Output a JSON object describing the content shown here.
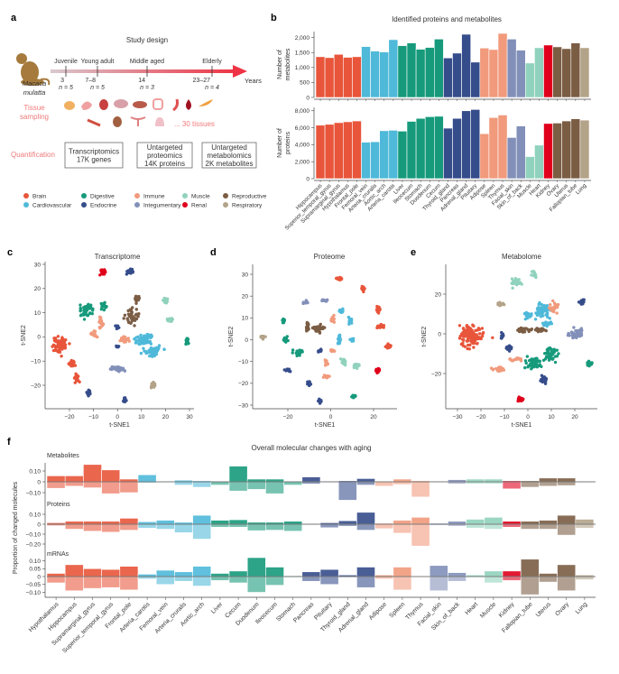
{
  "groups": [
    {
      "name": "Brain",
      "color": "#e8553a"
    },
    {
      "name": "Cardiovascular",
      "color": "#4fb9d9"
    },
    {
      "name": "Digestive",
      "color": "#169a7b"
    },
    {
      "name": "Endocrine",
      "color": "#364d8b"
    },
    {
      "name": "Immune",
      "color": "#f19a7c"
    },
    {
      "name": "Integumentary",
      "color": "#8290b9"
    },
    {
      "name": "Muscle",
      "color": "#90d2bd"
    },
    {
      "name": "Renal",
      "color": "#e0001b"
    },
    {
      "name": "Reproductive",
      "color": "#7b5d44"
    },
    {
      "name": "Respiratory",
      "color": "#b3a389"
    }
  ],
  "legend_order": [
    0,
    1,
    2,
    3,
    4,
    5,
    6,
    7,
    8,
    9
  ],
  "panel_a": {
    "label": "a",
    "title": "Study design",
    "species": [
      "Macaca",
      "mulatta"
    ],
    "stages": [
      {
        "name": "Juvenile",
        "age": "3",
        "n": "n = 5"
      },
      {
        "name": "Young adult",
        "age": "7–8",
        "n": "n = 5"
      },
      {
        "name": "Middle aged",
        "age": "14",
        "n": "n = 3"
      },
      {
        "name": "Elderly",
        "age": "23–27",
        "n": "n = 4"
      }
    ],
    "axis_label": "Years",
    "tissue_sampling": [
      "Tissue",
      "sampling"
    ],
    "tissues_note": "... 30 tissues",
    "quantification": "Quantification",
    "boxes": [
      [
        "Transcriptomics",
        "17K genes"
      ],
      [
        "Untargeted",
        "proteomics",
        "14K proteins"
      ],
      [
        "Untargeted",
        "metabolomics",
        "2K metabolites"
      ]
    ]
  },
  "chart_data": [
    {
      "panel": "b",
      "type": "bar",
      "title": "Identified proteins and metabolites",
      "categories": [
        "Hippocampus",
        "Superior_temporal_gyrus",
        "Supramarginal_gyrus",
        "Hypothalamus",
        "Frontal_pole",
        "Femoral_vein",
        "Arteria_cruralis",
        "Aortic_arch",
        "Arteria_carotis",
        "Liver",
        "Ileocecum",
        "Stomach",
        "Duodenum",
        "Cecum",
        "Thyroid_gland",
        "Pancreas",
        "Adrenal_gland",
        "Pituitary",
        "Adipose",
        "Spleen",
        "Thymus",
        "Facial_skin",
        "Skin_of_back",
        "Muscle",
        "Heart",
        "Kidney",
        "Ovary",
        "Uterus",
        "Fallopian_tube",
        "Lung"
      ],
      "category_groups": [
        0,
        0,
        0,
        0,
        0,
        1,
        1,
        1,
        1,
        2,
        2,
        2,
        2,
        2,
        3,
        3,
        3,
        3,
        4,
        4,
        4,
        5,
        5,
        6,
        6,
        7,
        8,
        8,
        8,
        9
      ],
      "series": [
        {
          "ylabel": [
            "Number of",
            "metabolites"
          ],
          "ylim": [
            0,
            2200
          ],
          "yticks": [
            0,
            500,
            1000,
            1500,
            2000
          ],
          "tick_labels": [
            "0",
            "500",
            "1,000",
            "1,500",
            "2,000"
          ],
          "values": [
            1360,
            1330,
            1440,
            1340,
            1360,
            1700,
            1550,
            1520,
            1930,
            1730,
            1820,
            1610,
            1670,
            1950,
            1320,
            1480,
            2110,
            1180,
            1650,
            1600,
            2140,
            1950,
            1580,
            1150,
            1660,
            1750,
            1690,
            1630,
            1820,
            1660
          ]
        },
        {
          "ylabel": [
            "Number of",
            "proteins"
          ],
          "ylim": [
            0,
            8400
          ],
          "yticks": [
            0,
            2000,
            4000,
            6000,
            8000
          ],
          "tick_labels": [
            "0",
            "2,000",
            "4,000",
            "6,000",
            "8,000"
          ],
          "values": [
            6300,
            6400,
            6600,
            6700,
            6800,
            4300,
            4350,
            5650,
            5700,
            5600,
            6750,
            7100,
            7300,
            7350,
            5950,
            7100,
            8000,
            8150,
            5300,
            7200,
            7500,
            4850,
            6200,
            2600,
            3950,
            6500,
            6550,
            6800,
            7050,
            6900
          ]
        }
      ]
    },
    {
      "panel": "c",
      "type": "scatter",
      "title": "Transcriptome",
      "xlabel": "t-SNE1",
      "ylabel": "t-SNE2",
      "xlim": [
        -28,
        32
      ],
      "ylim": [
        -30,
        31
      ],
      "xticks": [
        -20,
        -10,
        0,
        10,
        20,
        30
      ],
      "yticks": [
        -20,
        -10,
        0,
        10,
        20,
        30
      ],
      "clusters": [
        [
          -6,
          27,
          7,
          1,
          0.8,
          25
        ],
        [
          5,
          27,
          3,
          1,
          0.8,
          25
        ],
        [
          8,
          16,
          8,
          0.8,
          1,
          20
        ],
        [
          20,
          15,
          6,
          1,
          1,
          20
        ],
        [
          -13,
          11,
          2,
          2,
          2.5,
          50
        ],
        [
          -6,
          13,
          2,
          1,
          1,
          20
        ],
        [
          6,
          8,
          8,
          2,
          2.5,
          40
        ],
        [
          22,
          7,
          6,
          1.2,
          0.8,
          18
        ],
        [
          -7,
          6,
          4,
          0.8,
          1.5,
          18
        ],
        [
          0,
          4,
          3,
          0.6,
          1,
          12
        ],
        [
          -10,
          1,
          4,
          1,
          1,
          16
        ],
        [
          -24,
          -3,
          0,
          2.5,
          2.5,
          80
        ],
        [
          3,
          -1,
          4,
          1.5,
          1,
          22
        ],
        [
          11,
          -1,
          1,
          3,
          2,
          60
        ],
        [
          15,
          -6,
          1,
          3,
          2,
          55
        ],
        [
          29,
          -2,
          2,
          0.6,
          1,
          18
        ],
        [
          -19,
          -11,
          0,
          1,
          1,
          22
        ],
        [
          -17,
          -17,
          0,
          1,
          1.2,
          22
        ],
        [
          0,
          -13,
          5,
          2.5,
          1,
          40
        ],
        [
          15,
          -20,
          9,
          1,
          1,
          18
        ],
        [
          -12,
          -23,
          3,
          0.8,
          1.2,
          18
        ],
        [
          3,
          -26,
          3,
          0.6,
          0.8,
          14
        ],
        [
          0,
          -4,
          3,
          0.6,
          0.4,
          8
        ]
      ]
    },
    {
      "panel": "d",
      "type": "scatter",
      "title": "Proteome",
      "xlabel": "t-SNE1",
      "ylabel": "t-SNE2",
      "xlim": [
        -36,
        31
      ],
      "ylim": [
        -32,
        32
      ],
      "xticks": [
        -20,
        0,
        20
      ],
      "yticks": [
        -30,
        -20,
        -10,
        0,
        10,
        20,
        30
      ],
      "clusters": [
        [
          4,
          28,
          0,
          1.2,
          0.6,
          18
        ],
        [
          15,
          23,
          0,
          0.8,
          1,
          18
        ],
        [
          22,
          14,
          0,
          0.8,
          1.2,
          18
        ],
        [
          23,
          6,
          0,
          1.5,
          0.6,
          18
        ],
        [
          27,
          -3,
          0,
          1,
          0.8,
          18
        ],
        [
          22,
          -14,
          7,
          1,
          0.8,
          20
        ],
        [
          11,
          -26,
          2,
          1,
          0.6,
          18
        ],
        [
          -5,
          -28,
          3,
          0.7,
          0.8,
          14
        ],
        [
          -10,
          -20,
          3,
          0.8,
          0.8,
          14
        ],
        [
          -20,
          -14,
          3,
          1,
          0.8,
          14
        ],
        [
          -2,
          -17,
          4,
          0.8,
          0.8,
          14
        ],
        [
          -2,
          -11,
          4,
          0.5,
          1.5,
          14
        ],
        [
          1,
          -5,
          4,
          0.8,
          0.4,
          8
        ],
        [
          6,
          -10,
          6,
          1,
          1.5,
          16
        ],
        [
          12,
          -12,
          6,
          1.5,
          1,
          16
        ],
        [
          -5,
          -5,
          3,
          0.7,
          0.6,
          10
        ],
        [
          -15,
          -6,
          2,
          1.8,
          1,
          28
        ],
        [
          -21,
          0,
          2,
          0.8,
          1,
          16
        ],
        [
          -22,
          9,
          2,
          0.8,
          0.8,
          16
        ],
        [
          -32,
          1,
          9,
          1,
          0.6,
          16
        ],
        [
          -11,
          6,
          8,
          0.6,
          1.8,
          20
        ],
        [
          -6,
          5,
          8,
          2,
          1.2,
          30
        ],
        [
          -12,
          17,
          5,
          1.5,
          0.5,
          14
        ],
        [
          -3,
          18,
          5,
          1.5,
          0.5,
          14
        ],
        [
          5,
          13,
          1,
          0.8,
          1,
          14
        ],
        [
          9,
          9,
          1,
          0.8,
          1.2,
          14
        ],
        [
          4,
          0,
          1,
          0.6,
          2,
          18
        ],
        [
          10,
          0,
          1,
          0.8,
          0.6,
          12
        ],
        [
          1,
          9,
          4,
          0.8,
          1.5,
          14
        ]
      ]
    },
    {
      "panel": "e",
      "type": "scatter",
      "title": "Metabolome",
      "xlabel": "t-SNE1",
      "ylabel": "t-SNE2",
      "xlim": [
        -35,
        29
      ],
      "ylim": [
        -38,
        35
      ],
      "xticks": [
        -30,
        -20,
        -10,
        0,
        10,
        20
      ],
      "yticks": [
        -20,
        0,
        20
      ],
      "clusters": [
        [
          -5,
          26,
          6,
          2,
          1.5,
          30
        ],
        [
          3,
          30,
          6,
          1,
          1.5,
          16
        ],
        [
          23,
          16,
          3,
          1,
          1,
          18
        ],
        [
          -12,
          15,
          9,
          1.2,
          0.8,
          18
        ],
        [
          6,
          12,
          1,
          3,
          3,
          60
        ],
        [
          0,
          9,
          1,
          1.5,
          1.2,
          18
        ],
        [
          11,
          13,
          4,
          1.5,
          2.5,
          22
        ],
        [
          -2,
          2,
          8,
          2,
          1,
          25
        ],
        [
          5,
          2,
          8,
          3,
          0.8,
          30
        ],
        [
          21,
          0,
          5,
          2.5,
          2,
          45
        ],
        [
          -24,
          -1,
          0,
          4,
          4,
          110
        ],
        [
          -8,
          -7,
          3,
          1.5,
          1.2,
          16
        ],
        [
          -11,
          -1,
          3,
          0.6,
          1.5,
          10
        ],
        [
          10,
          -10,
          2,
          2.5,
          3,
          45
        ],
        [
          3,
          -15,
          2,
          3,
          2.5,
          50
        ],
        [
          26,
          -15,
          2,
          1.2,
          1,
          20
        ],
        [
          -5,
          -13,
          4,
          2,
          0.6,
          16
        ],
        [
          -12,
          -18,
          4,
          2,
          1,
          22
        ],
        [
          7,
          -23,
          3,
          1,
          1.5,
          22
        ],
        [
          -3,
          -33,
          7,
          1,
          1,
          22
        ],
        [
          8,
          5,
          1,
          2,
          1,
          20
        ]
      ]
    },
    {
      "panel": "f",
      "type": "bar",
      "title": "Overall molecular changes with aging",
      "ylabel": "Proportion of changed molecules",
      "categories": [
        "Hypothalamus",
        "Hippocampus",
        "Supramarginal_gyrus",
        "Superior_temporal_gyrus",
        "Frontal_pole",
        "Arteria_carotis",
        "Femoral_vein",
        "Arteria_cruralis",
        "Aortic_arch",
        "Liver",
        "Cecum",
        "Duodenum",
        "Ileocecum",
        "Stomach",
        "Pancreas",
        "Pituitary",
        "Thyroid_gland",
        "Adrenal_gland",
        "Adipose",
        "Spleen",
        "Thymus",
        "Facial_skin",
        "Skin_of_back",
        "Heart",
        "Muscle",
        "Kidney",
        "Fallopian_tube",
        "Uterus",
        "Ovary",
        "Lung"
      ],
      "category_groups": [
        0,
        0,
        0,
        0,
        0,
        1,
        1,
        1,
        1,
        2,
        2,
        2,
        2,
        2,
        3,
        3,
        3,
        3,
        4,
        4,
        4,
        5,
        5,
        6,
        6,
        7,
        8,
        8,
        8,
        9
      ],
      "series": [
        {
          "name": "Metabolites",
          "yticks": [
            0.1,
            0,
            -0.1
          ],
          "tick_labels": [
            "0.10",
            "0",
            "−0.10"
          ],
          "ylim": [
            -0.17,
            0.16
          ],
          "up": [
            0.055,
            0.055,
            0.16,
            0.11,
            0.025,
            0.065,
            0.005,
            0.015,
            0.01,
            0.005,
            0.145,
            0.025,
            0.025,
            0.005,
            0.045,
            0.005,
            0.01,
            0.03,
            0.005,
            0.025,
            0.01,
            0.005,
            0.02,
            0.025,
            0.025,
            0.01,
            0.01,
            0.035,
            0.035,
            0.005
          ],
          "down": [
            0.06,
            0.04,
            0.055,
            0.11,
            0.1,
            0.01,
            0.005,
            0.03,
            0.05,
            0.03,
            0.085,
            0.07,
            0.11,
            0.03,
            0.02,
            0.005,
            0.17,
            0.03,
            0.04,
            0.025,
            0.14,
            0.005,
            0.02,
            0.02,
            0.02,
            0.065,
            0.05,
            0.04,
            0.035,
            0.005
          ]
        },
        {
          "name": "Proteins",
          "yticks": [
            0.1,
            0,
            -0.1,
            -0.2
          ],
          "tick_labels": [
            "0.10",
            "0",
            "−0.10",
            "−0.20"
          ],
          "ylim": [
            -0.22,
            0.12
          ],
          "up": [
            0.015,
            0.03,
            0.03,
            0.03,
            0.06,
            0.025,
            0.04,
            0.02,
            0.09,
            0.04,
            0.045,
            0.02,
            0.02,
            0.03,
            0.005,
            0.015,
            0.035,
            0.12,
            0.01,
            0.04,
            0.07,
            0.01,
            0.03,
            0.05,
            0.07,
            0.03,
            0.03,
            0.04,
            0.09,
            0.05
          ],
          "down": [
            0.015,
            0.05,
            0.07,
            0.08,
            0.06,
            0.04,
            0.05,
            0.085,
            0.15,
            0.03,
            0.03,
            0.065,
            0.06,
            0.07,
            0.005,
            0.035,
            0.02,
            0.06,
            0.045,
            0.09,
            0.22,
            0.01,
            0.02,
            0.04,
            0.05,
            0.03,
            0.05,
            0.05,
            0.11,
            0.04
          ]
        },
        {
          "name": "mRNAs",
          "yticks": [
            0.1,
            0.05,
            0,
            -0.05,
            -0.1
          ],
          "tick_labels": [
            "0.10",
            "0.05",
            "0",
            "−0.05",
            "−0.10"
          ],
          "ylim": [
            -0.115,
            0.12
          ],
          "up": [
            0.02,
            0.075,
            0.05,
            0.045,
            0.065,
            0.015,
            0.04,
            0.03,
            0.065,
            0.02,
            0.035,
            0.12,
            0.06,
            0.005,
            0.03,
            0.045,
            0.01,
            0.06,
            0.01,
            0.06,
            0.002,
            0.07,
            0.025,
            0.01,
            0.035,
            0.035,
            0.11,
            0.02,
            0.075,
            0.01
          ],
          "down": [
            0.04,
            0.09,
            0.075,
            0.07,
            0.085,
            0.015,
            0.05,
            0.03,
            0.06,
            0.025,
            0.04,
            0.1,
            0.055,
            0.005,
            0.03,
            0.05,
            0.005,
            0.07,
            0.015,
            0.085,
            0.002,
            0.09,
            0.03,
            0.005,
            0.04,
            0.025,
            0.115,
            0.035,
            0.09,
            0.02
          ]
        }
      ]
    }
  ]
}
